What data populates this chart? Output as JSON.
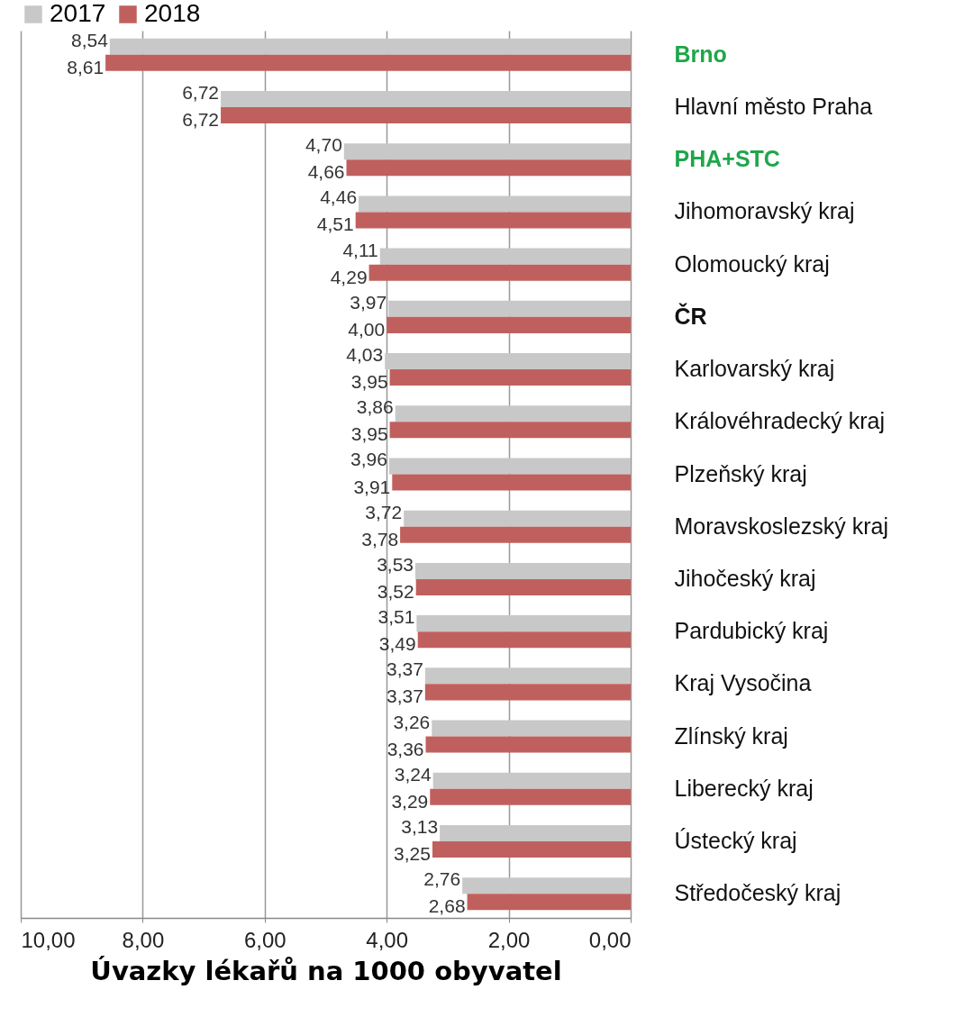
{
  "chart_data": {
    "type": "bar",
    "orientation": "horizontal",
    "xlabel": "Úvazky lékařů na 1000 obyvatel",
    "categories": [
      "Brno",
      "Hlavní město Praha",
      "PHA+STC",
      "Jihomoravský kraj",
      "Olomoucký kraj",
      "ČR",
      "Karlovarský kraj",
      "Královéhradecký kraj",
      "Plzeňský kraj",
      "Moravskoslezský kraj",
      "Jihočeský kraj",
      "Pardubický kraj",
      "Kraj Vysočina",
      "Zlínský kraj",
      "Liberecký kraj",
      "Ústecký kraj",
      "Středočeský kraj"
    ],
    "series": [
      {
        "name": "2017",
        "color": "#c8c8c8",
        "values": [
          8.54,
          6.72,
          4.7,
          4.46,
          4.11,
          3.97,
          4.03,
          3.86,
          3.96,
          3.72,
          3.53,
          3.51,
          3.37,
          3.26,
          3.24,
          3.13,
          2.76
        ],
        "value_labels": [
          "8,54",
          "6,72",
          "4,70",
          "4,46",
          "4,11",
          "3,97",
          "4,03",
          "3,86",
          "3,96",
          "3,72",
          "3,53",
          "3,51",
          "3,37",
          "3,26",
          "3,24",
          "3,13",
          "2,76"
        ]
      },
      {
        "name": "2018",
        "color": "#c0605e",
        "values": [
          8.61,
          6.72,
          4.66,
          4.51,
          4.29,
          4.0,
          3.95,
          3.95,
          3.91,
          3.78,
          3.52,
          3.49,
          3.37,
          3.36,
          3.29,
          3.25,
          2.68
        ],
        "value_labels": [
          "8,61",
          "6,72",
          "4,66",
          "4,51",
          "4,29",
          "4,00",
          "3,95",
          "3,95",
          "3,91",
          "3,78",
          "3,52",
          "3,49",
          "3,37",
          "3,36",
          "3,29",
          "3,25",
          "2,68"
        ]
      }
    ],
    "xlim": [
      10,
      0
    ],
    "xticks": [
      {
        "value": 10,
        "label": "10,00"
      },
      {
        "value": 8,
        "label": "8,00"
      },
      {
        "value": 6,
        "label": "6,00"
      },
      {
        "value": 4,
        "label": "4,00"
      },
      {
        "value": 2,
        "label": "2,00"
      },
      {
        "value": 0,
        "label": "0,00"
      }
    ],
    "grid": "x",
    "legend": "top"
  }
}
